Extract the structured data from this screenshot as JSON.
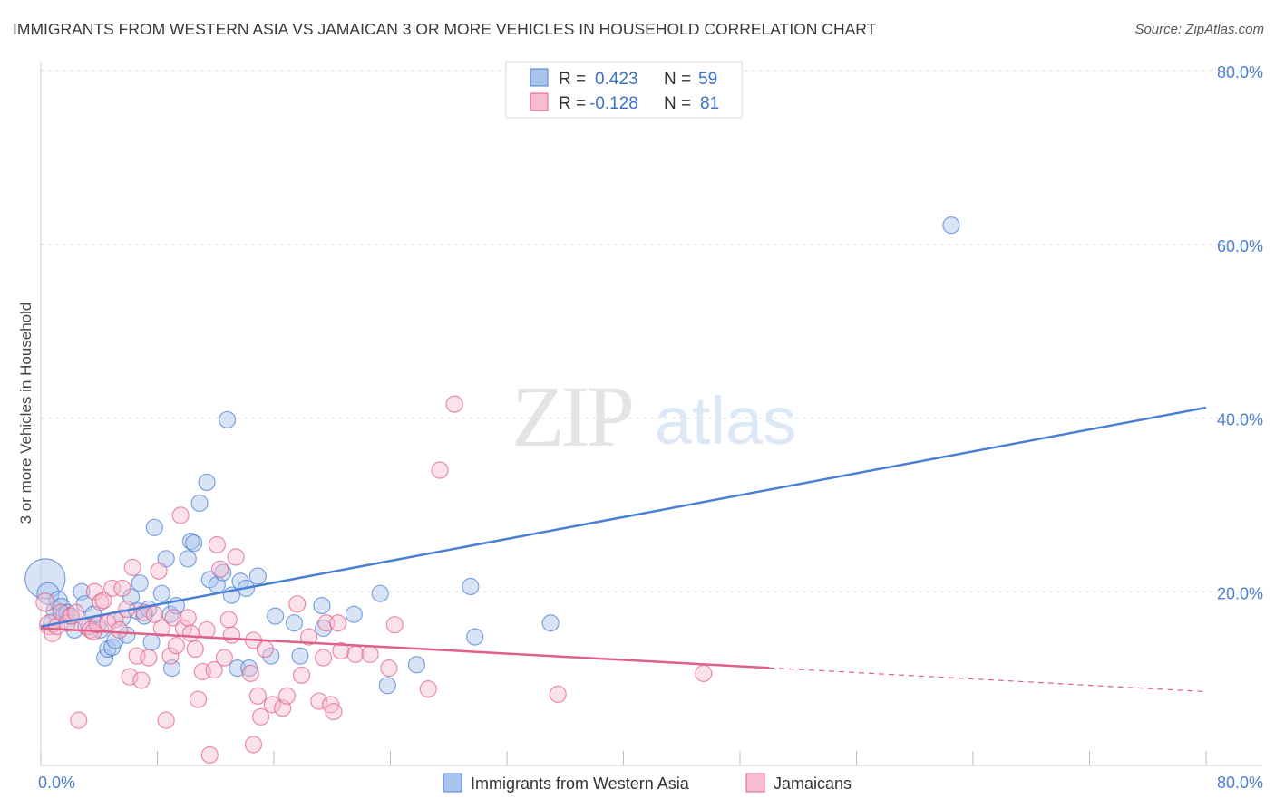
{
  "header": {
    "title": "IMMIGRANTS FROM WESTERN ASIA VS JAMAICAN 3 OR MORE VEHICLES IN HOUSEHOLD CORRELATION CHART",
    "source": "Source: ZipAtlas.com"
  },
  "watermark": {
    "zip": "ZIP",
    "atlas": "atlas"
  },
  "stats_box": [
    {
      "r_label": "R =",
      "r_value": "0.423",
      "n_label": "N =",
      "n_value": "59",
      "color": "#4a7fd4"
    },
    {
      "r_label": "R =",
      "r_value": "-0.128",
      "n_label": "N =",
      "n_value": "81",
      "color": "#e0608a"
    }
  ],
  "chart_data": {
    "type": "scatter",
    "title": "IMMIGRANTS FROM WESTERN ASIA VS JAMAICAN 3 OR MORE VEHICLES IN HOUSEHOLD CORRELATION CHART",
    "xlabel": "",
    "ylabel": "3 or more Vehicles in Household",
    "xlim": [
      0,
      80
    ],
    "ylim": [
      0,
      80
    ],
    "x_tick_labels": [
      "0.0%",
      "80.0%"
    ],
    "y_ticks": [
      20,
      40,
      60,
      80
    ],
    "y_tick_labels": [
      "20.0%",
      "40.0%",
      "60.0%",
      "80.0%"
    ],
    "grid": true,
    "legend_position": "bottom",
    "series": [
      {
        "name": "Immigrants from Western Asia",
        "color": "#4a7fd4",
        "fill": "#a9c4ec",
        "trend": {
          "x": [
            0,
            80
          ],
          "y": [
            16.0,
            41.2
          ]
        },
        "points": [
          {
            "x": 0.3,
            "y": 21.5,
            "s": 22
          },
          {
            "x": 0.5,
            "y": 19.8,
            "s": 12
          },
          {
            "x": 0.8,
            "y": 16.4,
            "s": 10
          },
          {
            "x": 1.0,
            "y": 17.8,
            "s": 10
          },
          {
            "x": 1.2,
            "y": 19.0,
            "s": 10
          },
          {
            "x": 1.4,
            "y": 18.2,
            "s": 10
          },
          {
            "x": 1.6,
            "y": 17.4,
            "s": 9
          },
          {
            "x": 1.8,
            "y": 17.6,
            "s": 9
          },
          {
            "x": 2.0,
            "y": 17.2,
            "s": 9
          },
          {
            "x": 2.3,
            "y": 15.6,
            "s": 9
          },
          {
            "x": 2.8,
            "y": 20.0,
            "s": 9
          },
          {
            "x": 3.0,
            "y": 18.6,
            "s": 9
          },
          {
            "x": 3.3,
            "y": 16.0,
            "s": 9
          },
          {
            "x": 3.6,
            "y": 17.4,
            "s": 9
          },
          {
            "x": 4.1,
            "y": 15.6,
            "s": 9
          },
          {
            "x": 4.4,
            "y": 12.4,
            "s": 9
          },
          {
            "x": 4.6,
            "y": 13.4,
            "s": 9
          },
          {
            "x": 4.9,
            "y": 13.6,
            "s": 9
          },
          {
            "x": 5.1,
            "y": 14.4,
            "s": 9
          },
          {
            "x": 5.6,
            "y": 17.0,
            "s": 9
          },
          {
            "x": 5.9,
            "y": 15.0,
            "s": 9
          },
          {
            "x": 6.2,
            "y": 19.4,
            "s": 9
          },
          {
            "x": 6.6,
            "y": 17.8,
            "s": 9
          },
          {
            "x": 6.8,
            "y": 21.0,
            "s": 9
          },
          {
            "x": 7.1,
            "y": 17.2,
            "s": 9
          },
          {
            "x": 7.4,
            "y": 18.0,
            "s": 9
          },
          {
            "x": 7.6,
            "y": 14.2,
            "s": 9
          },
          {
            "x": 7.8,
            "y": 27.4,
            "s": 9
          },
          {
            "x": 8.3,
            "y": 19.8,
            "s": 9
          },
          {
            "x": 8.6,
            "y": 23.8,
            "s": 9
          },
          {
            "x": 8.9,
            "y": 17.4,
            "s": 9
          },
          {
            "x": 9.0,
            "y": 11.2,
            "s": 9
          },
          {
            "x": 9.3,
            "y": 18.4,
            "s": 9
          },
          {
            "x": 10.1,
            "y": 23.8,
            "s": 9
          },
          {
            "x": 10.3,
            "y": 25.8,
            "s": 9
          },
          {
            "x": 10.5,
            "y": 25.6,
            "s": 9
          },
          {
            "x": 10.9,
            "y": 30.2,
            "s": 9
          },
          {
            "x": 11.4,
            "y": 32.6,
            "s": 9
          },
          {
            "x": 11.6,
            "y": 21.4,
            "s": 9
          },
          {
            "x": 12.1,
            "y": 20.8,
            "s": 9
          },
          {
            "x": 12.5,
            "y": 22.2,
            "s": 9
          },
          {
            "x": 12.8,
            "y": 39.8,
            "s": 9
          },
          {
            "x": 13.1,
            "y": 19.6,
            "s": 9
          },
          {
            "x": 13.5,
            "y": 11.2,
            "s": 9
          },
          {
            "x": 13.7,
            "y": 21.2,
            "s": 9
          },
          {
            "x": 14.1,
            "y": 20.4,
            "s": 9
          },
          {
            "x": 14.3,
            "y": 11.2,
            "s": 9
          },
          {
            "x": 14.9,
            "y": 21.8,
            "s": 9
          },
          {
            "x": 15.8,
            "y": 12.6,
            "s": 9
          },
          {
            "x": 16.1,
            "y": 17.2,
            "s": 9
          },
          {
            "x": 17.4,
            "y": 16.4,
            "s": 9
          },
          {
            "x": 17.8,
            "y": 12.6,
            "s": 9
          },
          {
            "x": 19.3,
            "y": 18.4,
            "s": 9
          },
          {
            "x": 19.4,
            "y": 15.8,
            "s": 9
          },
          {
            "x": 21.5,
            "y": 17.4,
            "s": 9
          },
          {
            "x": 23.3,
            "y": 19.8,
            "s": 9
          },
          {
            "x": 23.8,
            "y": 9.2,
            "s": 9
          },
          {
            "x": 25.8,
            "y": 11.6,
            "s": 9
          },
          {
            "x": 29.5,
            "y": 20.6,
            "s": 9
          },
          {
            "x": 29.8,
            "y": 14.8,
            "s": 9
          },
          {
            "x": 35.0,
            "y": 16.4,
            "s": 9
          },
          {
            "x": 62.5,
            "y": 62.2,
            "s": 9
          }
        ]
      },
      {
        "name": "Jamaicans",
        "color": "#e0608a",
        "fill": "#f6bccf",
        "trend": {
          "x": [
            0,
            80
          ],
          "y": [
            15.8,
            8.5
          ],
          "solid_until": 50
        },
        "points": [
          {
            "x": 0.3,
            "y": 18.8,
            "s": 10
          },
          {
            "x": 0.6,
            "y": 16.2,
            "s": 11
          },
          {
            "x": 0.8,
            "y": 15.2,
            "s": 9
          },
          {
            "x": 1.1,
            "y": 16.0,
            "s": 9
          },
          {
            "x": 1.4,
            "y": 17.6,
            "s": 9
          },
          {
            "x": 1.8,
            "y": 16.4,
            "s": 9
          },
          {
            "x": 2.1,
            "y": 17.2,
            "s": 9
          },
          {
            "x": 2.4,
            "y": 17.6,
            "s": 9
          },
          {
            "x": 2.6,
            "y": 5.2,
            "s": 9
          },
          {
            "x": 3.1,
            "y": 16.0,
            "s": 9
          },
          {
            "x": 3.4,
            "y": 15.6,
            "s": 9
          },
          {
            "x": 3.6,
            "y": 15.4,
            "s": 9
          },
          {
            "x": 3.7,
            "y": 20.0,
            "s": 9
          },
          {
            "x": 3.9,
            "y": 16.2,
            "s": 9
          },
          {
            "x": 4.1,
            "y": 18.8,
            "s": 9
          },
          {
            "x": 4.3,
            "y": 19.0,
            "s": 9
          },
          {
            "x": 4.6,
            "y": 16.4,
            "s": 9
          },
          {
            "x": 4.9,
            "y": 20.4,
            "s": 9
          },
          {
            "x": 5.1,
            "y": 16.8,
            "s": 9
          },
          {
            "x": 5.4,
            "y": 15.6,
            "s": 9
          },
          {
            "x": 5.6,
            "y": 20.4,
            "s": 9
          },
          {
            "x": 5.9,
            "y": 18.0,
            "s": 9
          },
          {
            "x": 6.1,
            "y": 10.2,
            "s": 9
          },
          {
            "x": 6.3,
            "y": 22.8,
            "s": 9
          },
          {
            "x": 6.6,
            "y": 12.6,
            "s": 9
          },
          {
            "x": 6.9,
            "y": 9.8,
            "s": 9
          },
          {
            "x": 7.1,
            "y": 17.6,
            "s": 9
          },
          {
            "x": 7.4,
            "y": 12.4,
            "s": 9
          },
          {
            "x": 7.8,
            "y": 17.4,
            "s": 9
          },
          {
            "x": 8.1,
            "y": 22.4,
            "s": 9
          },
          {
            "x": 8.3,
            "y": 15.8,
            "s": 9
          },
          {
            "x": 8.6,
            "y": 5.2,
            "s": 9
          },
          {
            "x": 8.9,
            "y": 12.6,
            "s": 9
          },
          {
            "x": 9.1,
            "y": 17.0,
            "s": 9
          },
          {
            "x": 9.3,
            "y": 13.8,
            "s": 9
          },
          {
            "x": 9.6,
            "y": 28.8,
            "s": 9
          },
          {
            "x": 9.8,
            "y": 15.8,
            "s": 9
          },
          {
            "x": 10.1,
            "y": 17.0,
            "s": 9
          },
          {
            "x": 10.3,
            "y": 15.2,
            "s": 9
          },
          {
            "x": 10.6,
            "y": 13.4,
            "s": 9
          },
          {
            "x": 10.8,
            "y": 7.6,
            "s": 9
          },
          {
            "x": 11.1,
            "y": 10.8,
            "s": 9
          },
          {
            "x": 11.4,
            "y": 15.6,
            "s": 9
          },
          {
            "x": 11.6,
            "y": 1.2,
            "s": 9
          },
          {
            "x": 11.9,
            "y": 11.0,
            "s": 9
          },
          {
            "x": 12.1,
            "y": 25.4,
            "s": 9
          },
          {
            "x": 12.3,
            "y": 22.6,
            "s": 9
          },
          {
            "x": 12.6,
            "y": 12.4,
            "s": 9
          },
          {
            "x": 12.9,
            "y": 16.8,
            "s": 9
          },
          {
            "x": 13.1,
            "y": 15.0,
            "s": 9
          },
          {
            "x": 13.4,
            "y": 24.0,
            "s": 9
          },
          {
            "x": 14.4,
            "y": 10.6,
            "s": 9
          },
          {
            "x": 14.6,
            "y": 14.4,
            "s": 9
          },
          {
            "x": 14.9,
            "y": 8.0,
            "s": 9
          },
          {
            "x": 15.1,
            "y": 5.6,
            "s": 9
          },
          {
            "x": 15.4,
            "y": 13.4,
            "s": 9
          },
          {
            "x": 14.6,
            "y": 2.4,
            "s": 9
          },
          {
            "x": 15.9,
            "y": 7.0,
            "s": 9
          },
          {
            "x": 16.6,
            "y": 6.6,
            "s": 9
          },
          {
            "x": 16.9,
            "y": 8.0,
            "s": 9
          },
          {
            "x": 17.6,
            "y": 18.6,
            "s": 9
          },
          {
            "x": 17.9,
            "y": 10.4,
            "s": 9
          },
          {
            "x": 18.4,
            "y": 14.8,
            "s": 9
          },
          {
            "x": 19.1,
            "y": 7.4,
            "s": 9
          },
          {
            "x": 19.4,
            "y": 12.4,
            "s": 9
          },
          {
            "x": 19.6,
            "y": 16.4,
            "s": 9
          },
          {
            "x": 19.9,
            "y": 7.0,
            "s": 9
          },
          {
            "x": 20.1,
            "y": 6.2,
            "s": 9
          },
          {
            "x": 20.4,
            "y": 16.4,
            "s": 9
          },
          {
            "x": 20.6,
            "y": 13.2,
            "s": 9
          },
          {
            "x": 21.6,
            "y": 12.8,
            "s": 9
          },
          {
            "x": 22.6,
            "y": 12.8,
            "s": 9
          },
          {
            "x": 23.9,
            "y": 11.2,
            "s": 9
          },
          {
            "x": 24.3,
            "y": 16.2,
            "s": 9
          },
          {
            "x": 26.6,
            "y": 8.8,
            "s": 9
          },
          {
            "x": 28.4,
            "y": 41.6,
            "s": 9
          },
          {
            "x": 27.4,
            "y": 34.0,
            "s": 9
          },
          {
            "x": 35.5,
            "y": 8.2,
            "s": 9
          },
          {
            "x": 45.5,
            "y": 10.6,
            "s": 9
          }
        ]
      }
    ]
  },
  "legend": {
    "items": [
      {
        "label": "Immigrants from Western Asia",
        "color": "#4a7fd4",
        "fill": "#a9c4ec"
      },
      {
        "label": "Jamaicans",
        "color": "#e0608a",
        "fill": "#f6bccf"
      }
    ]
  }
}
